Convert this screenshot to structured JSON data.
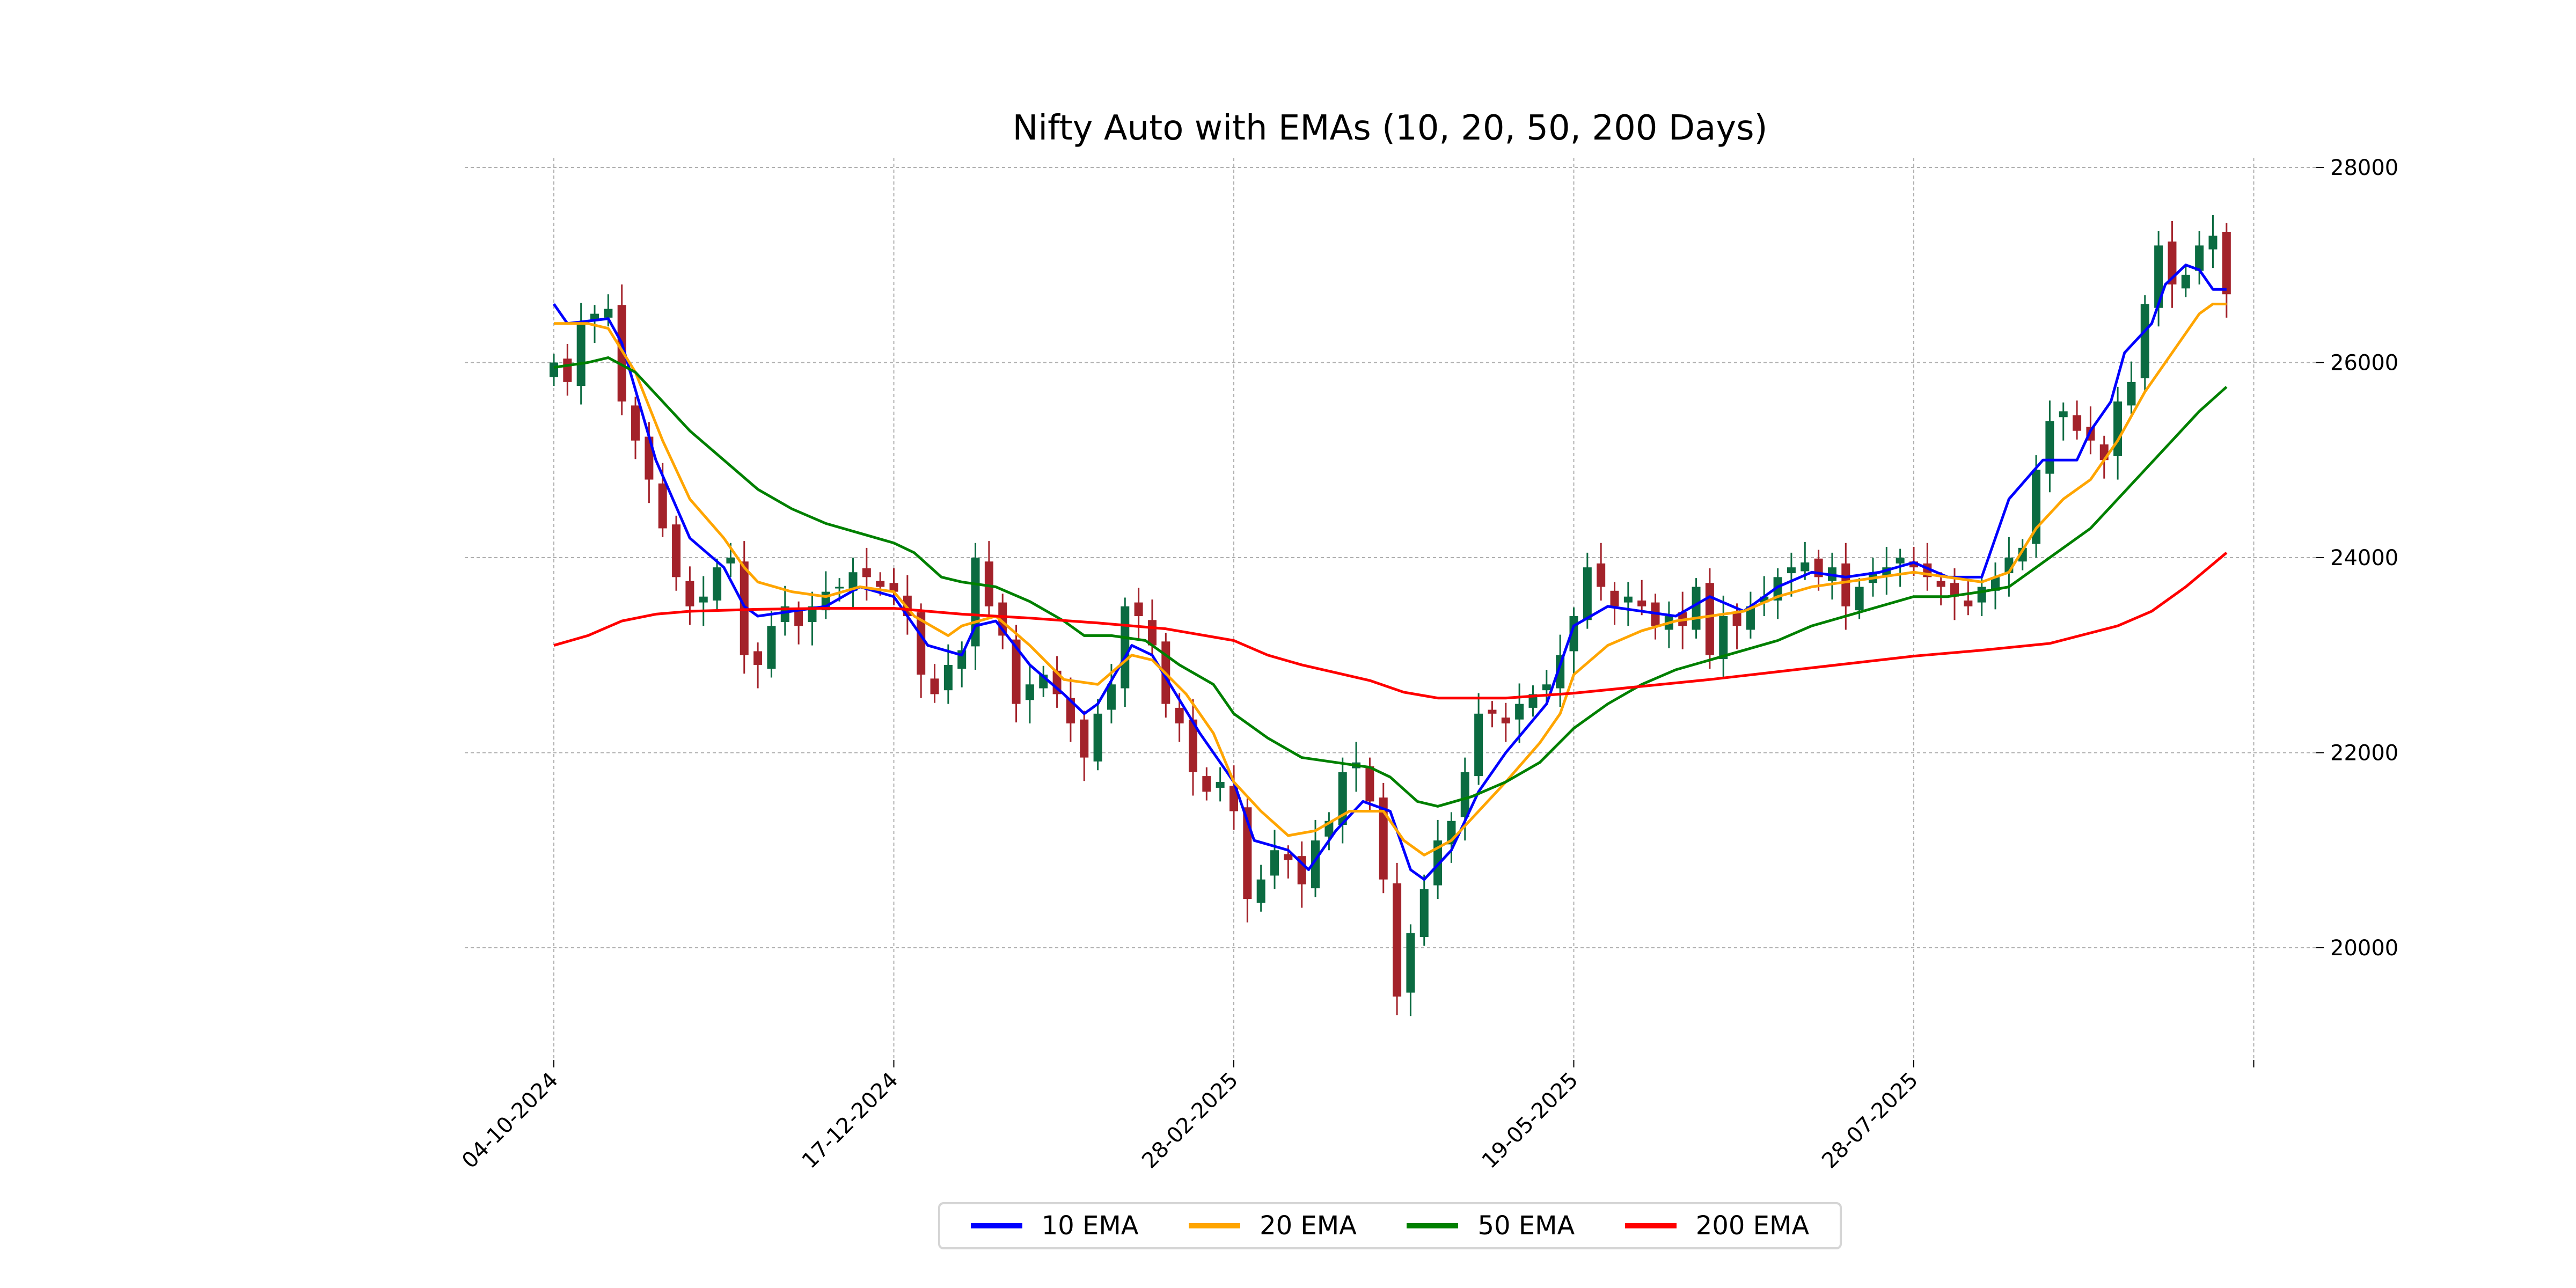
{
  "chart_data": {
    "type": "candlestick-line",
    "title": "Nifty Auto with EMAs (10, 20, 50, 200 Days)",
    "xlabel": "",
    "ylabel": "",
    "ylim": [
      18850,
      28100
    ],
    "grid": true,
    "legend_placement": "bottom-center",
    "x_unit": "trading day index",
    "x_ticks": [
      {
        "day": 0,
        "label": "04-10-2024"
      },
      {
        "day": 50,
        "label": "17-12-2024"
      },
      {
        "day": 100,
        "label": "28-02-2025"
      },
      {
        "day": 150,
        "label": "19-05-2025"
      },
      {
        "day": 200,
        "label": "28-07-2025"
      },
      {
        "day": 250,
        "label": ""
      }
    ],
    "y_ticks": [
      20000,
      22000,
      24000,
      26000,
      28000
    ],
    "colors": {
      "up": "#0b6b41",
      "down": "#a3222a",
      "grid": "#b0b0b0"
    },
    "candle_step_days": 2,
    "closes": [
      26000,
      25800,
      26400,
      26500,
      26550,
      25600,
      25200,
      24800,
      24300,
      23800,
      23500,
      23600,
      23900,
      24000,
      23000,
      22900,
      23300,
      23500,
      23300,
      23500,
      23650,
      23700,
      23850,
      23800,
      23700,
      23650,
      23400,
      22800,
      22600,
      22900,
      23050,
      24000,
      23500,
      23200,
      22500,
      22700,
      22800,
      22600,
      22300,
      21950,
      22400,
      22700,
      23500,
      23400,
      23100,
      22500,
      22300,
      21800,
      21600,
      21700,
      21400,
      20500,
      20700,
      21000,
      20900,
      20650,
      21100,
      21300,
      21800,
      21900,
      21500,
      20700,
      19500,
      20150,
      20600,
      21100,
      21300,
      21800,
      22400,
      22400,
      22300,
      22500,
      22600,
      22700,
      23000,
      23400,
      23900,
      23700,
      23500,
      23600,
      23500,
      23300,
      23400,
      23300,
      23700,
      23000,
      23400,
      23300,
      23500,
      23600,
      23800,
      23900,
      23950,
      23800,
      23900,
      23500,
      23700,
      23850,
      23900,
      24000,
      23900,
      23800,
      23700,
      23600,
      23500,
      23700,
      23800,
      24000,
      24100,
      24900,
      25400,
      25500,
      25300,
      25200,
      25000,
      25600,
      25800,
      26600,
      27200,
      26800,
      26900,
      27200,
      27300,
      26700
    ],
    "series": [
      {
        "name": "10 EMA",
        "color": "#0000ff",
        "points": [
          [
            0,
            26600
          ],
          [
            2,
            26400
          ],
          [
            8,
            26450
          ],
          [
            10,
            26200
          ],
          [
            15,
            25000
          ],
          [
            20,
            24200
          ],
          [
            25,
            23900
          ],
          [
            28,
            23500
          ],
          [
            30,
            23400
          ],
          [
            35,
            23450
          ],
          [
            40,
            23500
          ],
          [
            45,
            23700
          ],
          [
            50,
            23600
          ],
          [
            55,
            23100
          ],
          [
            60,
            23000
          ],
          [
            62,
            23300
          ],
          [
            65,
            23350
          ],
          [
            70,
            22900
          ],
          [
            75,
            22600
          ],
          [
            78,
            22400
          ],
          [
            80,
            22500
          ],
          [
            85,
            23100
          ],
          [
            88,
            23000
          ],
          [
            95,
            22200
          ],
          [
            100,
            21700
          ],
          [
            103,
            21100
          ],
          [
            108,
            21000
          ],
          [
            111,
            20800
          ],
          [
            115,
            21200
          ],
          [
            119,
            21500
          ],
          [
            123,
            21400
          ],
          [
            126,
            20800
          ],
          [
            128,
            20700
          ],
          [
            132,
            21000
          ],
          [
            136,
            21600
          ],
          [
            140,
            22000
          ],
          [
            146,
            22500
          ],
          [
            150,
            23300
          ],
          [
            155,
            23500
          ],
          [
            160,
            23450
          ],
          [
            165,
            23400
          ],
          [
            170,
            23600
          ],
          [
            175,
            23450
          ],
          [
            180,
            23700
          ],
          [
            185,
            23850
          ],
          [
            190,
            23800
          ],
          [
            195,
            23850
          ],
          [
            200,
            23950
          ],
          [
            205,
            23800
          ],
          [
            210,
            23800
          ],
          [
            214,
            24600
          ],
          [
            219,
            25000
          ],
          [
            224,
            25000
          ],
          [
            226,
            25300
          ],
          [
            229,
            25600
          ],
          [
            231,
            26100
          ],
          [
            235,
            26400
          ],
          [
            237,
            26800
          ],
          [
            240,
            27000
          ],
          [
            242,
            26950
          ],
          [
            244,
            26750
          ],
          [
            246,
            26750
          ]
        ]
      },
      {
        "name": "20 EMA",
        "color": "#ffa500",
        "points": [
          [
            0,
            26400
          ],
          [
            5,
            26400
          ],
          [
            8,
            26350
          ],
          [
            12,
            25900
          ],
          [
            16,
            25200
          ],
          [
            20,
            24600
          ],
          [
            25,
            24200
          ],
          [
            28,
            23900
          ],
          [
            30,
            23750
          ],
          [
            35,
            23650
          ],
          [
            40,
            23600
          ],
          [
            45,
            23700
          ],
          [
            50,
            23650
          ],
          [
            53,
            23400
          ],
          [
            58,
            23200
          ],
          [
            60,
            23300
          ],
          [
            65,
            23400
          ],
          [
            70,
            23100
          ],
          [
            75,
            22750
          ],
          [
            80,
            22700
          ],
          [
            85,
            23000
          ],
          [
            88,
            22950
          ],
          [
            93,
            22600
          ],
          [
            97,
            22200
          ],
          [
            100,
            21700
          ],
          [
            104,
            21400
          ],
          [
            108,
            21150
          ],
          [
            112,
            21200
          ],
          [
            117,
            21400
          ],
          [
            122,
            21400
          ],
          [
            125,
            21100
          ],
          [
            128,
            20950
          ],
          [
            132,
            21100
          ],
          [
            136,
            21400
          ],
          [
            140,
            21700
          ],
          [
            145,
            22100
          ],
          [
            148,
            22400
          ],
          [
            150,
            22800
          ],
          [
            155,
            23100
          ],
          [
            160,
            23250
          ],
          [
            165,
            23350
          ],
          [
            170,
            23400
          ],
          [
            175,
            23450
          ],
          [
            180,
            23600
          ],
          [
            185,
            23700
          ],
          [
            190,
            23750
          ],
          [
            195,
            23800
          ],
          [
            200,
            23850
          ],
          [
            205,
            23800
          ],
          [
            210,
            23750
          ],
          [
            214,
            23850
          ],
          [
            218,
            24300
          ],
          [
            222,
            24600
          ],
          [
            226,
            24800
          ],
          [
            230,
            25200
          ],
          [
            234,
            25700
          ],
          [
            238,
            26100
          ],
          [
            242,
            26500
          ],
          [
            244,
            26600
          ],
          [
            246,
            26600
          ]
        ]
      },
      {
        "name": "50 EMA",
        "color": "#008000",
        "points": [
          [
            0,
            25950
          ],
          [
            5,
            26000
          ],
          [
            8,
            26050
          ],
          [
            12,
            25900
          ],
          [
            16,
            25600
          ],
          [
            20,
            25300
          ],
          [
            25,
            25000
          ],
          [
            30,
            24700
          ],
          [
            35,
            24500
          ],
          [
            40,
            24350
          ],
          [
            45,
            24250
          ],
          [
            50,
            24150
          ],
          [
            53,
            24050
          ],
          [
            57,
            23800
          ],
          [
            60,
            23750
          ],
          [
            65,
            23700
          ],
          [
            70,
            23550
          ],
          [
            75,
            23350
          ],
          [
            78,
            23200
          ],
          [
            82,
            23200
          ],
          [
            87,
            23150
          ],
          [
            92,
            22900
          ],
          [
            97,
            22700
          ],
          [
            100,
            22400
          ],
          [
            105,
            22150
          ],
          [
            110,
            21950
          ],
          [
            115,
            21900
          ],
          [
            120,
            21850
          ],
          [
            123,
            21750
          ],
          [
            127,
            21500
          ],
          [
            130,
            21450
          ],
          [
            135,
            21550
          ],
          [
            140,
            21700
          ],
          [
            145,
            21900
          ],
          [
            150,
            22250
          ],
          [
            155,
            22500
          ],
          [
            160,
            22700
          ],
          [
            165,
            22850
          ],
          [
            170,
            22950
          ],
          [
            175,
            23050
          ],
          [
            180,
            23150
          ],
          [
            185,
            23300
          ],
          [
            190,
            23400
          ],
          [
            195,
            23500
          ],
          [
            200,
            23600
          ],
          [
            205,
            23600
          ],
          [
            210,
            23650
          ],
          [
            214,
            23700
          ],
          [
            218,
            23900
          ],
          [
            222,
            24100
          ],
          [
            226,
            24300
          ],
          [
            230,
            24600
          ],
          [
            234,
            24900
          ],
          [
            238,
            25200
          ],
          [
            242,
            25500
          ],
          [
            246,
            25750
          ]
        ]
      },
      {
        "name": "200 EMA",
        "color": "#ff0000",
        "points": [
          [
            0,
            23100
          ],
          [
            5,
            23200
          ],
          [
            10,
            23350
          ],
          [
            15,
            23420
          ],
          [
            20,
            23450
          ],
          [
            30,
            23470
          ],
          [
            40,
            23480
          ],
          [
            50,
            23480
          ],
          [
            60,
            23420
          ],
          [
            70,
            23380
          ],
          [
            80,
            23330
          ],
          [
            90,
            23270
          ],
          [
            100,
            23150
          ],
          [
            105,
            23000
          ],
          [
            110,
            22900
          ],
          [
            115,
            22820
          ],
          [
            120,
            22740
          ],
          [
            125,
            22620
          ],
          [
            130,
            22560
          ],
          [
            140,
            22560
          ],
          [
            150,
            22610
          ],
          [
            160,
            22680
          ],
          [
            170,
            22750
          ],
          [
            180,
            22830
          ],
          [
            190,
            22910
          ],
          [
            200,
            22990
          ],
          [
            210,
            23050
          ],
          [
            220,
            23120
          ],
          [
            230,
            23300
          ],
          [
            235,
            23450
          ],
          [
            240,
            23700
          ],
          [
            246,
            24050
          ]
        ]
      }
    ]
  }
}
